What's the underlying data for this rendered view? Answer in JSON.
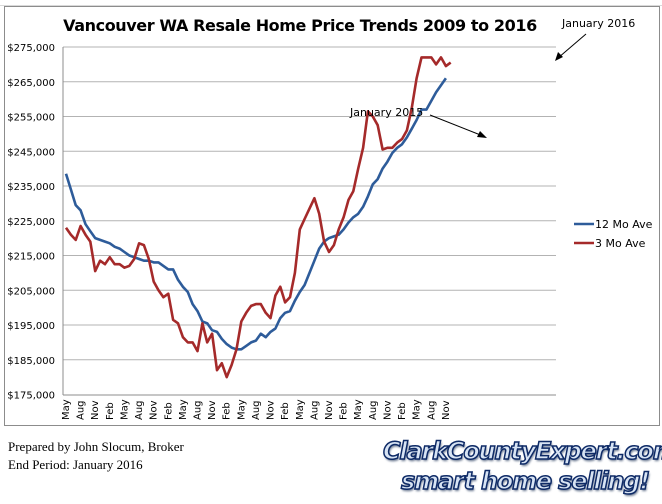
{
  "chart_data": {
    "type": "line",
    "title": "Vancouver WA Resale Home Price Trends 2009 to 2016",
    "xlabel": "",
    "ylabel": "",
    "ylim": [
      175000,
      275000
    ],
    "y_ticks": [
      "$175,000",
      "$185,000",
      "$195,000",
      "$205,000",
      "$215,000",
      "$225,000",
      "$235,000",
      "$245,000",
      "$255,000",
      "$265,000",
      "$275,000"
    ],
    "y_tick_values": [
      175000,
      185000,
      195000,
      205000,
      215000,
      225000,
      235000,
      245000,
      255000,
      265000,
      275000
    ],
    "x_tick_labels": [
      "May",
      "Aug",
      "Nov",
      "Feb",
      "May",
      "Aug",
      "Nov",
      "Feb",
      "May",
      "Aug",
      "Nov",
      "Feb",
      "May",
      "Aug",
      "Nov",
      "Feb",
      "May",
      "Aug",
      "Nov",
      "Feb",
      "May",
      "Aug",
      "Nov",
      "Feb",
      "May",
      "Aug",
      "Nov"
    ],
    "x_start": "May 2009",
    "x_end": "January 2016",
    "grid": true,
    "legend_position": "right",
    "series": [
      {
        "name": "12 Mo Ave",
        "color": "#2e5c9a",
        "values": [
          238500,
          234000,
          229500,
          228000,
          224000,
          222000,
          220000,
          219500,
          219000,
          218500,
          217500,
          217000,
          216000,
          215000,
          214500,
          214000,
          213500,
          213500,
          213000,
          213000,
          212000,
          211000,
          211000,
          208000,
          206000,
          204500,
          201000,
          199000,
          196000,
          195500,
          193500,
          193000,
          191000,
          189500,
          188500,
          188000,
          188000,
          189000,
          190000,
          190500,
          192500,
          191500,
          193000,
          194000,
          197000,
          198500,
          199000,
          202000,
          204500,
          206500,
          210000,
          213500,
          217000,
          219000,
          220000,
          220500,
          221000,
          222500,
          224500,
          226000,
          227000,
          229000,
          232000,
          235500,
          237000,
          240000,
          242000,
          244500,
          246000,
          247000,
          249000,
          251500,
          254000,
          257000,
          257000,
          259500,
          262000,
          264000,
          266000
        ],
        "x_months": 79
      },
      {
        "name": "3 Mo Ave",
        "color": "#a52a2a",
        "values": [
          223000,
          221000,
          219500,
          223500,
          221000,
          219000,
          210500,
          213500,
          212500,
          214500,
          212500,
          212500,
          211500,
          212000,
          214000,
          218500,
          218000,
          214000,
          207500,
          205000,
          203000,
          204000,
          196500,
          195500,
          191500,
          190000,
          190000,
          187500,
          195500,
          190000,
          192500,
          182000,
          184000,
          180000,
          183500,
          188000,
          196000,
          198500,
          200500,
          201000,
          201000,
          198500,
          197000,
          203500,
          206000,
          201500,
          203000,
          210000,
          222500,
          225500,
          228500,
          231500,
          227000,
          219000,
          216000,
          218000,
          222500,
          226000,
          231000,
          233500,
          240000,
          246000,
          256500,
          255000,
          252500,
          245500,
          246000,
          246000,
          247500,
          248500,
          251000,
          257500,
          266000,
          272000,
          272000,
          272000,
          270000,
          272000,
          269500,
          270500
        ],
        "x_months": 80
      }
    ],
    "annotations": [
      {
        "text": "January 2015",
        "arrow_to": "January 2015 data point"
      },
      {
        "text": "January 2016",
        "arrow_to": "January 2016 data point"
      }
    ]
  },
  "chart": {
    "title": "Vancouver WA Resale Home Price Trends 2009 to 2016",
    "legend": {
      "series1": "12 Mo Ave",
      "series2": "3 Mo Ave"
    },
    "annotation1": "January 2015",
    "annotation2": "January 2016"
  },
  "footer": {
    "prepared_by": "Prepared by John Slocum, Broker",
    "end_period": "End Period: January 2016"
  },
  "logo": {
    "line1": "ClarkCountyExpert.com",
    "line2": "smart home selling!"
  },
  "colors": {
    "series_12mo": "#2e5c9a",
    "series_3mo": "#a52a2a",
    "gridline": "#b3b3b3",
    "axis": "#8c8c8c"
  }
}
